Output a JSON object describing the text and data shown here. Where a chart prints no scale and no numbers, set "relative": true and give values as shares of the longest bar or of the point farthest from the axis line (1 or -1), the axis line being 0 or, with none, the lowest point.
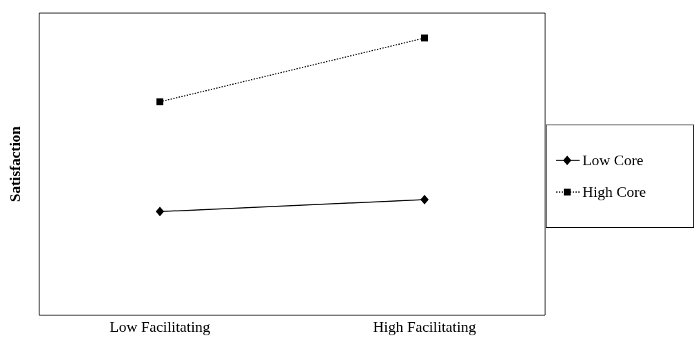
{
  "chart_data": {
    "type": "line",
    "relative": true,
    "ylabel": "Satisfaction",
    "categories": [
      "Low Facilitating",
      "High Facilitating"
    ],
    "legend": "right",
    "grid": false,
    "series": [
      {
        "name": "Low Core",
        "color": "#000000",
        "values": [
          0.374,
          0.417
        ],
        "marker": "diamond",
        "line_style": "solid"
      },
      {
        "name": "High Core",
        "color": "#000000",
        "values": [
          0.77,
          1
        ],
        "marker": "square",
        "line_style": "dotted"
      }
    ]
  }
}
